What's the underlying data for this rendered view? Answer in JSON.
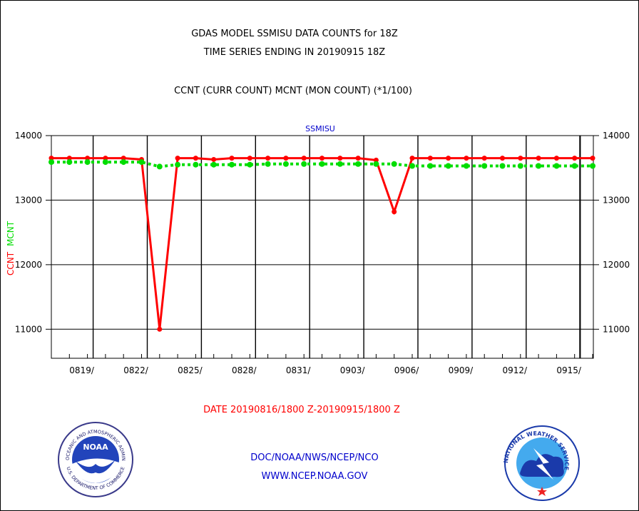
{
  "header": {
    "title_line1": "GDAS MODEL SSMISU DATA COUNTS for 18Z",
    "title_line2": "TIME SERIES ENDING IN 20190915 18Z",
    "subtitle": "CCNT (CURR COUNT) MCNT (MON COUNT) (*1/100)"
  },
  "footer": {
    "date_range": "DATE 20190816/1800 Z-20190915/1800 Z",
    "org_line": "DOC/NOAA/NWS/NCEP/NCO",
    "url_line": "WWW.NCEP.NOAA.GOV",
    "noaa_logo_text": "NOAA",
    "noaa_ring_top": "NATIONAL OCEANIC AND ATMOSPHERIC ADMINISTRATION",
    "noaa_ring_bottom": "U.S. DEPARTMENT OF COMMERCE",
    "nws_ring_text": "NATIONAL WEATHER SERVICE"
  },
  "colors": {
    "ccnt": "#ff0000",
    "mcnt": "#00dd00",
    "label_blue": "#0000cc",
    "grid": "#000000"
  },
  "chart_data": {
    "type": "line",
    "panel_label": "SSMISU",
    "ylabel_ccnt": "CCNT",
    "ylabel_mcnt": "MCNT",
    "ylim": [
      10550,
      14000
    ],
    "yticks": [
      11000,
      12000,
      13000,
      14000
    ],
    "ytick_labels": [
      "11000",
      "12000",
      "13000",
      "14000"
    ],
    "xtick_labels": [
      "0819/",
      "0822/",
      "0825/",
      "0828/",
      "0831/",
      "0903/",
      "0906/",
      "0909/",
      "0912/",
      "0915/"
    ],
    "grid": true,
    "series": [
      {
        "name": "CCNT",
        "values": [
          13650,
          13650,
          13650,
          13650,
          13650,
          13630,
          11000,
          13650,
          13650,
          13630,
          13650,
          13650,
          13650,
          13650,
          13650,
          13650,
          13650,
          13650,
          13620,
          12820,
          13650,
          13650,
          13650,
          13650,
          13650,
          13650,
          13650,
          13650,
          13650,
          13650,
          13650
        ]
      },
      {
        "name": "MCNT",
        "values": [
          13590,
          13590,
          13590,
          13590,
          13590,
          13590,
          13520,
          13550,
          13550,
          13550,
          13550,
          13550,
          13560,
          13560,
          13560,
          13560,
          13560,
          13560,
          13560,
          13560,
          13530,
          13530,
          13530,
          13530,
          13530,
          13530,
          13530,
          13530,
          13530,
          13530,
          13530
        ]
      }
    ]
  }
}
